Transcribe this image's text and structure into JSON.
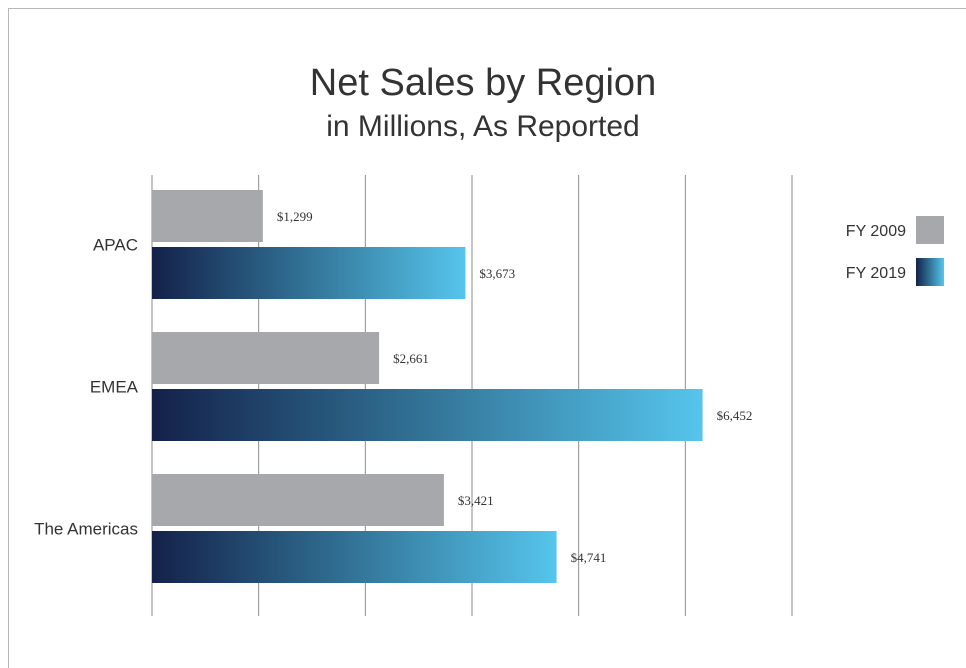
{
  "chart_data": {
    "type": "bar",
    "orientation": "horizontal",
    "title": "Net Sales by Region",
    "subtitle": "in Millions, As Reported",
    "categories": [
      "APAC",
      "EMEA",
      "The Americas"
    ],
    "series": [
      {
        "name": "FY 2009",
        "values": [
          1299,
          2661,
          3421
        ],
        "labels": [
          "$1,299",
          "$2,661",
          "$3,421"
        ],
        "color": "#a7a8ab"
      },
      {
        "name": "FY 2019",
        "values": [
          3673,
          6452,
          4741
        ],
        "labels": [
          "$3,673",
          "$6,452",
          "$4,741"
        ],
        "color_start": "#14214a",
        "color_end": "#56c5ec"
      }
    ],
    "xlim": [
      0,
      7500
    ],
    "grid_step": 1250,
    "grid": true,
    "legend_position": "right"
  }
}
